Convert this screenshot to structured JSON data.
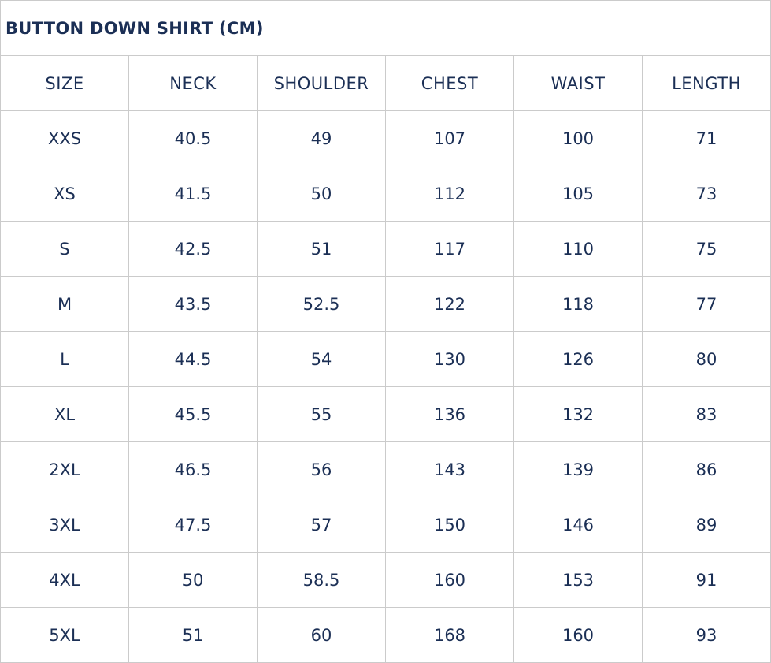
{
  "title": "BUTTON DOWN SHIRT (CM)",
  "headers": [
    "SIZE",
    "NECK",
    "SHOULDER",
    "CHEST",
    "WAIST",
    "LENGTH"
  ],
  "rows": [
    [
      "XXS",
      "40.5",
      "49",
      "107",
      "100",
      "71"
    ],
    [
      "XS",
      "41.5",
      "50",
      "112",
      "105",
      "73"
    ],
    [
      "S",
      "42.5",
      "51",
      "117",
      "110",
      "75"
    ],
    [
      "M",
      "43.5",
      "52.5",
      "122",
      "118",
      "77"
    ],
    [
      "L",
      "44.5",
      "54",
      "130",
      "126",
      "80"
    ],
    [
      "XL",
      "45.5",
      "55",
      "136",
      "132",
      "83"
    ],
    [
      "2XL",
      "46.5",
      "56",
      "143",
      "139",
      "86"
    ],
    [
      "3XL",
      "47.5",
      "57",
      "150",
      "146",
      "89"
    ],
    [
      "4XL",
      "50",
      "58.5",
      "160",
      "153",
      "91"
    ],
    [
      "5XL",
      "51",
      "60",
      "168",
      "160",
      "93"
    ]
  ]
}
